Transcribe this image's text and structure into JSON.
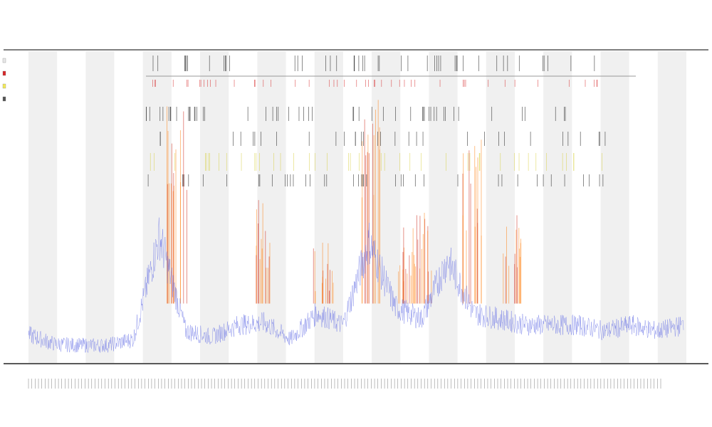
{
  "chart_data": {
    "type": "line",
    "title": "",
    "subtitle": "",
    "xlabel": "",
    "ylabel": "",
    "grid": false,
    "legend_position": "top-left",
    "band_count": 23,
    "series": [
      {
        "name": "",
        "color": "#e8e8e8"
      },
      {
        "name": "",
        "color": "#d62728"
      },
      {
        "name": "",
        "color": "#f2ea5a"
      },
      {
        "name": "",
        "color": "#555555"
      }
    ],
    "colors": {
      "low": "#6670e6",
      "mid": "#ff7f0e",
      "high": "#cc1f10",
      "band": "#f0f0f0",
      "tick": "#111111"
    },
    "x": [
      0,
      4,
      8,
      12,
      16,
      20,
      24,
      28,
      32,
      36,
      40,
      44,
      48,
      52,
      56,
      60,
      64,
      68,
      72,
      76,
      80,
      84,
      88,
      92,
      96,
      100
    ],
    "values": [
      0.12,
      0.04,
      0.03,
      0.03,
      0.08,
      0.95,
      0.15,
      0.1,
      0.2,
      0.22,
      0.08,
      0.3,
      0.2,
      0.9,
      0.35,
      0.25,
      0.75,
      0.3,
      0.25,
      0.2,
      0.2,
      0.2,
      0.15,
      0.2,
      0.15,
      0.2
    ],
    "ylim": [
      0,
      1
    ],
    "xlim": [
      0,
      100
    ]
  }
}
